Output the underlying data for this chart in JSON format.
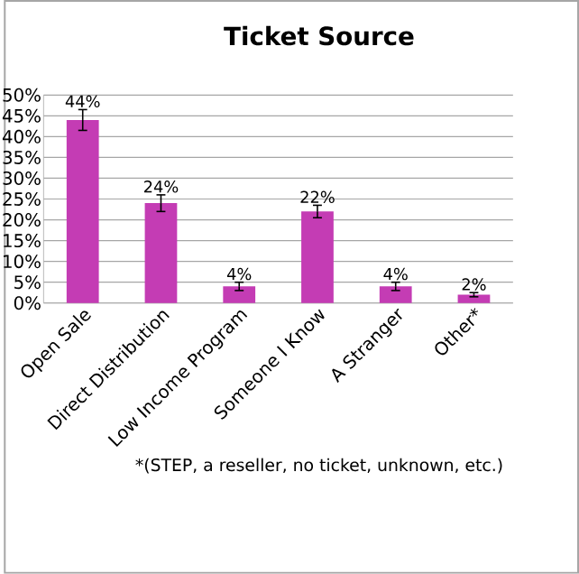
{
  "chart_data": {
    "type": "bar",
    "title": "Ticket Source",
    "categories": [
      "Open Sale",
      "Direct Distribution",
      "Low Income Program",
      "Someone I Know",
      "A Stranger",
      "Other*"
    ],
    "values": [
      44,
      24,
      4,
      22,
      4,
      2
    ],
    "errors": [
      2.5,
      2,
      1,
      1.5,
      1,
      0.5
    ],
    "value_labels": [
      "44%",
      "24%",
      "4%",
      "22%",
      "4%",
      "2%"
    ],
    "color": "#c43cb4",
    "ylim": [
      0,
      50
    ],
    "yticks": [
      {
        "value": 0,
        "label": "0%"
      },
      {
        "value": 5,
        "label": "5%"
      },
      {
        "value": 10,
        "label": "10%"
      },
      {
        "value": 15,
        "label": "15%"
      },
      {
        "value": 20,
        "label": "20%"
      },
      {
        "value": 25,
        "label": "25%"
      },
      {
        "value": 30,
        "label": "30%"
      },
      {
        "value": 35,
        "label": "35%"
      },
      {
        "value": 40,
        "label": "40%"
      },
      {
        "value": 45,
        "label": "45%"
      },
      {
        "value": 50,
        "label": "50%"
      }
    ],
    "grid": "y",
    "annotations": [
      "*(STEP, a reseller, no ticket, unknown, etc.)"
    ]
  }
}
